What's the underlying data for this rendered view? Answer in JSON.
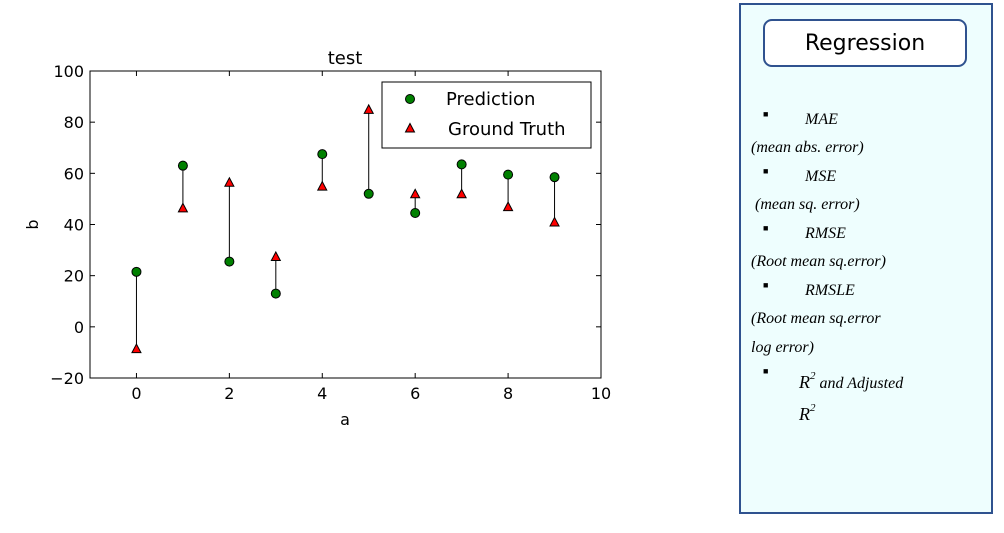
{
  "chart_data": {
    "type": "scatter",
    "title": "test",
    "xlabel": "a",
    "ylabel": "b",
    "xlim": [
      -1,
      10
    ],
    "ylim": [
      -20,
      100
    ],
    "xticks": [
      0,
      2,
      4,
      6,
      8,
      10
    ],
    "yticks": [
      -20,
      0,
      20,
      40,
      60,
      80,
      100
    ],
    "grid": false,
    "legend_position": "top-right",
    "x": [
      0,
      1,
      2,
      3,
      4,
      5,
      6,
      7,
      8,
      9
    ],
    "series": [
      {
        "name": "Prediction",
        "marker": "circle",
        "color": "#008000",
        "values": [
          21.5,
          63,
          25.5,
          13,
          67.5,
          52,
          44.5,
          63.5,
          59.5,
          58.5
        ]
      },
      {
        "name": "Ground Truth",
        "marker": "triangle",
        "color": "#ff0000",
        "values": [
          -8.5,
          46.5,
          56.5,
          27.5,
          55,
          85,
          52,
          52,
          47,
          41
        ]
      }
    ],
    "error_lines": true
  },
  "panel": {
    "title": "Regression",
    "metrics": [
      {
        "name": "MAE",
        "desc": "(mean abs. error)"
      },
      {
        "name": "MSE",
        "desc": " (mean sq. error)"
      },
      {
        "name": "RMSE",
        "desc": "(Root mean sq.error)"
      },
      {
        "name": "RMSLE",
        "desc": "(Root mean sq.error",
        "desc2": "log error)"
      }
    ],
    "last_metric": {
      "prefix": "R",
      "sup": "2",
      "rest": " and Adjusted",
      "line2": "R",
      "sup2": "2"
    }
  }
}
